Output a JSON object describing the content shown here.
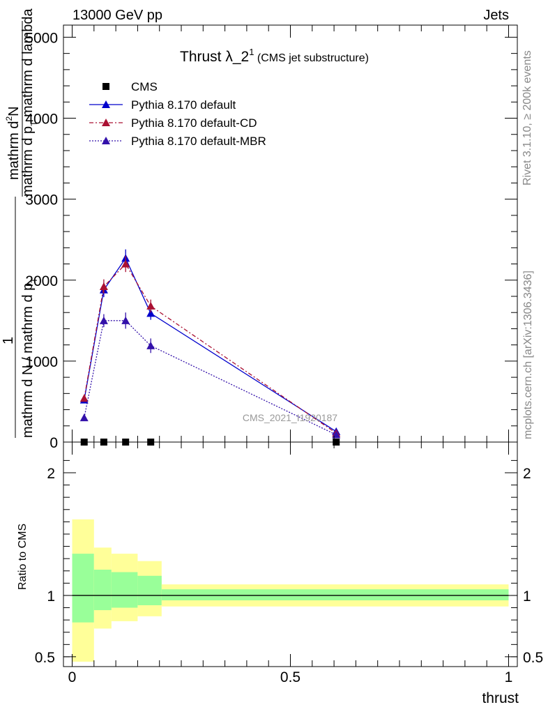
{
  "header": {
    "left": "13000 GeV pp",
    "right": "Jets"
  },
  "side_text": {
    "rivet": "Rivet 3.1.10, ≥ 200k events",
    "mcplots": "mcplots.cern.ch [arXiv:1306.3436]"
  },
  "chart_data": [
    {
      "panel": "main",
      "type": "line",
      "title_main": "Thrust λ_2",
      "title_sup": "1",
      "title_sub": " (CMS jet substructure)",
      "ylabel_top_num": "mathrm d",
      "ylabel_top_sup": "2",
      "ylabel_top_rest": "N",
      "ylabel_top_den": "mathrm d p",
      "ylabel_top_den_sub": "T",
      "ylabel_top_den_rest": " mathrm d lambda",
      "ylabel_bot_num": "1",
      "ylabel_bot_den": "mathrm d N / mathrm d p",
      "ylabel_bot_den_sub": "T",
      "watermark": "CMS_2021_I1920187",
      "ylim": [
        0,
        5150
      ],
      "xlim": [
        -0.02,
        1.02
      ],
      "y_ticks": [
        0,
        1000,
        2000,
        3000,
        4000,
        5000
      ],
      "y_tick_labels": [
        "0",
        "1000",
        "2000",
        "3000",
        "4000",
        "5000"
      ],
      "legend_position": "top-left",
      "series": [
        {
          "name": "CMS",
          "color": "#000000",
          "marker": "square",
          "x": [
            0.0275,
            0.0725,
            0.1225,
            0.18,
            0.605
          ],
          "y": [
            0,
            0,
            0,
            0,
            0
          ]
        },
        {
          "name": "Pythia 8.170 default",
          "color": "#0000cc",
          "marker": "triangle",
          "line": "solid",
          "x": [
            0.0275,
            0.0725,
            0.1225,
            0.18,
            0.605
          ],
          "y": [
            520,
            1880,
            2270,
            1590,
            130
          ],
          "err": [
            40,
            90,
            110,
            80,
            20
          ]
        },
        {
          "name": "Pythia 8.170 default-CD",
          "color": "#aa1133",
          "marker": "triangle",
          "line": "dashdot",
          "x": [
            0.0275,
            0.0725,
            0.1225,
            0.18,
            0.605
          ],
          "y": [
            540,
            1920,
            2200,
            1680,
            110
          ],
          "err": [
            40,
            90,
            100,
            80,
            20
          ]
        },
        {
          "name": "Pythia 8.170 default-MBR",
          "color": "#3311aa",
          "marker": "triangle",
          "line": "dotted",
          "x": [
            0.0275,
            0.0725,
            0.1225,
            0.18,
            0.605
          ],
          "y": [
            300,
            1500,
            1500,
            1190,
            90
          ],
          "err": [
            40,
            80,
            100,
            90,
            20
          ]
        }
      ]
    },
    {
      "panel": "ratio",
      "type": "area",
      "ylabel": "Ratio to CMS",
      "xlabel": "thrust",
      "ylim": [
        0.42,
        2.25
      ],
      "xlim": [
        -0.02,
        1.02
      ],
      "y_ticks": [
        0.5,
        1,
        2
      ],
      "y_tick_labels": [
        "0.5",
        "1",
        "2"
      ],
      "x_ticks": [
        0,
        0.5,
        1
      ],
      "x_tick_labels": [
        "0",
        "0.5",
        "1"
      ],
      "bins": [
        {
          "x0": 0.0,
          "x1": 0.05,
          "inner": [
            0.78,
            1.34
          ],
          "outer": [
            0.46,
            1.62
          ]
        },
        {
          "x0": 0.05,
          "x1": 0.09,
          "inner": [
            0.88,
            1.21
          ],
          "outer": [
            0.73,
            1.39
          ]
        },
        {
          "x0": 0.09,
          "x1": 0.15,
          "inner": [
            0.9,
            1.19
          ],
          "outer": [
            0.79,
            1.34
          ]
        },
        {
          "x0": 0.15,
          "x1": 0.205,
          "inner": [
            0.92,
            1.16
          ],
          "outer": [
            0.83,
            1.28
          ]
        },
        {
          "x0": 0.205,
          "x1": 1.0,
          "inner": [
            0.96,
            1.05
          ],
          "outer": [
            0.91,
            1.09
          ]
        }
      ],
      "inner_color": "#99ff99",
      "outer_color": "#ffff99",
      "reference": 1
    }
  ]
}
